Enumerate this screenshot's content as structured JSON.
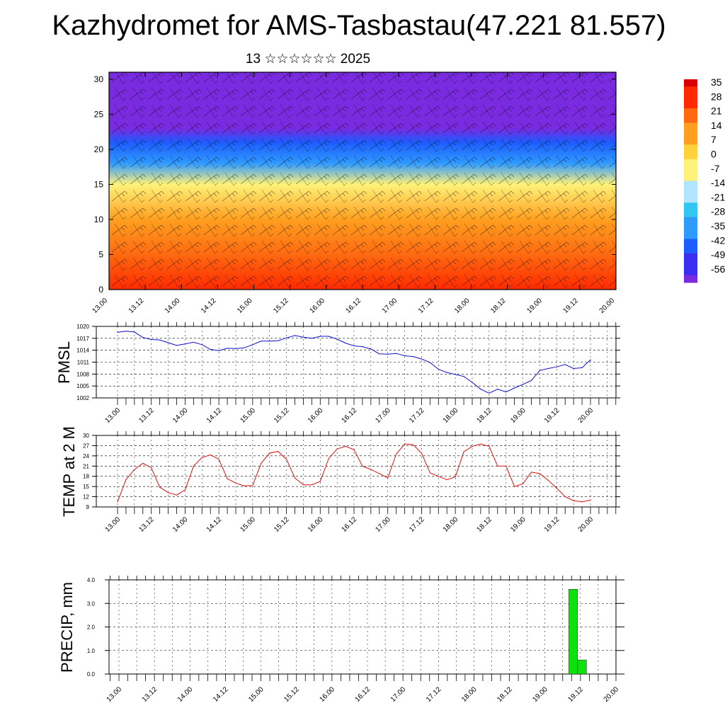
{
  "header": {
    "title": "Kazhydromet for AMS-Tasbastau(47.221 81.557)",
    "subtitle": "13 ☆☆☆☆☆☆ 2025"
  },
  "colors": {
    "pmsl_line": "#1010d0",
    "temp_line": "#e01010",
    "precip_bar": "#10e010",
    "contour_ramp": [
      "#7a2be0",
      "#3a2ff0",
      "#1d5cff",
      "#2f9bff",
      "#33c6f0",
      "#b0e4ff",
      "#fff27a",
      "#ffd23a",
      "#ffa020",
      "#ff6a10",
      "#ff2a00",
      "#d80000"
    ]
  },
  "chart_data": [
    {
      "type": "heatmap",
      "title": "",
      "xlabel": "",
      "ylabel": "",
      "ylim": [
        0,
        31
      ],
      "y_ticks": [
        "0",
        "5",
        "10",
        "15",
        "20",
        "25",
        "30"
      ],
      "x_ticks": [
        "13.00",
        "13.12",
        "14.00",
        "14.12",
        "15.00",
        "15.12",
        "16.00",
        "16.12",
        "17.00",
        "17.12",
        "18.00",
        "18.12",
        "19.00",
        "19.12",
        "20.00"
      ],
      "colorbar_labels": [
        "35",
        "28",
        "21",
        "14",
        "7",
        "0",
        "-7",
        "-14",
        "-21",
        "-28",
        "-35",
        "-42",
        "-49",
        "-56"
      ],
      "overlay": "wind barbs",
      "value_bands": [
        {
          "y": 0,
          "value": 28
        },
        {
          "y": 5,
          "value": 21
        },
        {
          "y": 10,
          "value": 7
        },
        {
          "y": 15,
          "value": -7
        },
        {
          "y": 18,
          "value": -28
        },
        {
          "y": 21,
          "value": -42
        },
        {
          "y": 23,
          "value": -56
        },
        {
          "y": 25,
          "value": -56
        },
        {
          "y": 31,
          "value": -56
        }
      ]
    },
    {
      "type": "line",
      "ylabel": "PMSL",
      "ylim": [
        1002,
        1020
      ],
      "y_ticks": [
        "1002",
        "1005",
        "1008",
        "1011",
        "1014",
        "1017",
        "1020"
      ],
      "x_ticks": [
        "13.00",
        "13.12",
        "14.00",
        "14.12",
        "15.00",
        "15.12",
        "16.00",
        "16.12",
        "17.00",
        "17.12",
        "18.00",
        "18.12",
        "19.00",
        "19.12",
        "20.00"
      ],
      "x_unit": "hours since 13.00",
      "x": [
        0,
        3,
        6,
        9,
        12,
        15,
        18,
        21,
        24,
        27,
        30,
        33,
        36,
        39,
        42,
        45,
        48,
        51,
        54,
        57,
        60,
        63,
        66,
        69,
        72,
        75,
        78,
        81,
        84,
        87,
        90,
        93,
        96,
        99,
        102,
        105,
        108,
        111,
        114,
        117,
        120,
        123,
        126,
        129,
        132,
        135,
        138,
        141,
        144,
        147,
        150,
        153,
        156,
        159,
        162,
        165,
        168
      ],
      "series": [
        {
          "values": [
            1018.5,
            1018.8,
            1018.6,
            1017.2,
            1016.7,
            1016.6,
            1015.9,
            1015.2,
            1015.6,
            1016.0,
            1015.4,
            1014.2,
            1013.9,
            1014.5,
            1014.4,
            1014.6,
            1015.4,
            1016.3,
            1016.3,
            1016.4,
            1017.1,
            1017.7,
            1017.3,
            1017.0,
            1017.5,
            1017.5,
            1016.8,
            1015.8,
            1015.1,
            1014.9,
            1014.3,
            1013.1,
            1013.0,
            1013.2,
            1012.6,
            1012.4,
            1011.8,
            1010.9,
            1009.2,
            1008.4,
            1007.9,
            1007.4,
            1005.9,
            1004.2,
            1003.2,
            1004.2,
            1003.5,
            1004.5,
            1005.4,
            1006.4,
            1008.9,
            1009.4,
            1009.8,
            1010.4,
            1009.4,
            1009.6,
            1011.6
          ]
        }
      ]
    },
    {
      "type": "line",
      "ylabel": "TEMP at 2 M",
      "ylim": [
        9,
        30
      ],
      "y_ticks": [
        "9",
        "12",
        "15",
        "18",
        "21",
        "24",
        "27",
        "30"
      ],
      "x_ticks": [
        "13.00",
        "13.12",
        "14.00",
        "14.12",
        "15.00",
        "15.12",
        "16.00",
        "16.12",
        "17.00",
        "17.12",
        "18.00",
        "18.12",
        "19.00",
        "19.12",
        "20.00"
      ],
      "x_unit": "hours since 13.00",
      "x": [
        0,
        3,
        6,
        9,
        12,
        15,
        18,
        21,
        24,
        27,
        30,
        33,
        36,
        39,
        42,
        45,
        48,
        51,
        54,
        57,
        60,
        63,
        66,
        69,
        72,
        75,
        78,
        81,
        84,
        87,
        90,
        93,
        96,
        99,
        102,
        105,
        108,
        111,
        114,
        117,
        120,
        123,
        126,
        129,
        132,
        135,
        138,
        141,
        144,
        147,
        150,
        153,
        156,
        159,
        162,
        165,
        168
      ],
      "series": [
        {
          "values": [
            10.5,
            17.0,
            20.0,
            21.8,
            20.5,
            14.8,
            13.2,
            12.5,
            14.0,
            21.0,
            23.5,
            24.3,
            23.0,
            17.3,
            16.0,
            15.2,
            15.3,
            21.8,
            24.8,
            25.3,
            23.0,
            17.5,
            15.5,
            15.5,
            16.5,
            23.2,
            26.0,
            26.8,
            25.8,
            21.0,
            20.0,
            18.8,
            17.5,
            24.5,
            27.5,
            27.3,
            24.8,
            19.0,
            18.0,
            17.0,
            17.8,
            25.2,
            26.8,
            27.5,
            26.8,
            21.0,
            21.0,
            15.0,
            15.8,
            19.2,
            18.8,
            16.8,
            14.5,
            12.0,
            10.8,
            10.5,
            11.0
          ]
        }
      ]
    },
    {
      "type": "bar",
      "ylabel": "PRECIP, mm",
      "ylim": [
        0.0,
        4.0
      ],
      "y_ticks": [
        "0.0",
        "1.0",
        "2.0",
        "3.0",
        "4.0"
      ],
      "x_ticks": [
        "13.00",
        "13.12",
        "14.00",
        "14.12",
        "15.00",
        "15.12",
        "16.00",
        "16.12",
        "17.00",
        "17.12",
        "18.00",
        "18.12",
        "19.00",
        "19.12",
        "20.00"
      ],
      "x_unit": "hours since 13.00",
      "bars": [
        {
          "x_start": 153,
          "x_end": 156,
          "value": 3.6
        },
        {
          "x_start": 156,
          "x_end": 159,
          "value": 0.6
        }
      ]
    }
  ]
}
